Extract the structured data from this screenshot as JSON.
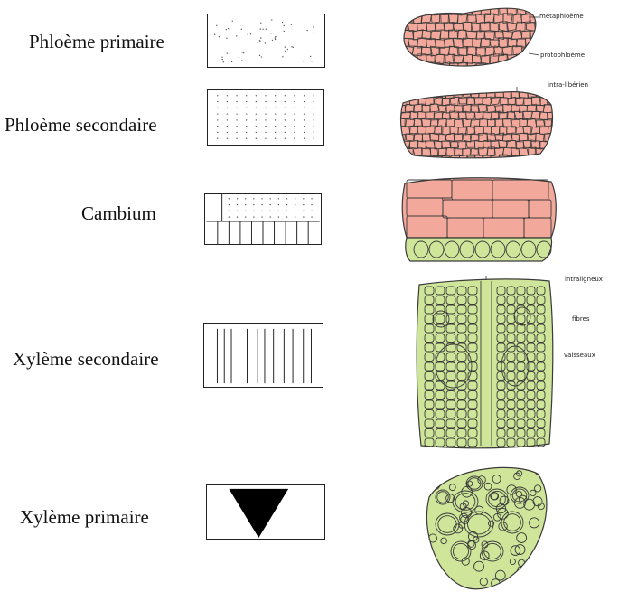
{
  "tissues": [
    {
      "id": "phloeme-primaire",
      "label": "Phloème primaire"
    },
    {
      "id": "phloeme-secondaire",
      "label": "Phloème secondaire"
    },
    {
      "id": "cambium",
      "label": "Cambium"
    },
    {
      "id": "xyleme-secondaire",
      "label": "Xylème secondaire"
    },
    {
      "id": "xyleme-primaire",
      "label": "Xylème primaire"
    }
  ],
  "annotations": {
    "metaphloeme": "métaphloème",
    "protophloeme": "protophloème",
    "intra_liberien": "intra-libérien",
    "intraligneux": "intraligneux",
    "fibres": "fibres",
    "vaisseaux": "vaisseaux"
  },
  "colors": {
    "phloem_fill": "#f2a99b",
    "xylem_fill": "#cfe69a",
    "cell_wall": "#3a3a3a"
  }
}
